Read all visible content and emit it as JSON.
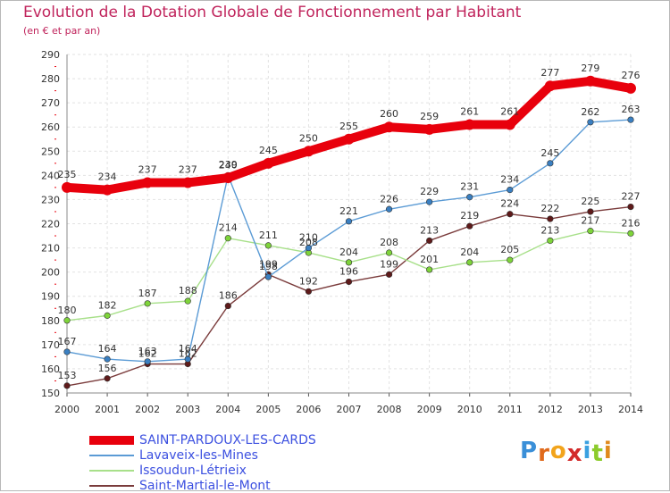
{
  "header": {
    "title": "Evolution de la Dotation Globale de Fonctionnement par Habitant",
    "subtitle": "(en € et par an)"
  },
  "chart_data": {
    "type": "line",
    "title": "Evolution de la Dotation Globale de Fonctionnement par Habitant",
    "ylabel": "(en € et par an)",
    "xlabel": "",
    "x": [
      "2000",
      "2001",
      "2002",
      "2003",
      "2004",
      "2005",
      "2006",
      "2007",
      "2008",
      "2009",
      "2010",
      "2011",
      "2012",
      "2013",
      "2014"
    ],
    "ylim": [
      150,
      290
    ],
    "yticks": [
      "150",
      "160",
      "170",
      "180",
      "190",
      "200",
      "210",
      "220",
      "230",
      "240",
      "250",
      "260",
      "270",
      "280",
      "290"
    ],
    "grid": true,
    "legend_position": "bottom-left",
    "series": [
      {
        "name": "SAINT-PARDOUX-LES-CARDS",
        "color": "#e8000c",
        "marker": "#e8000c",
        "values": [
          235,
          234,
          237,
          237,
          239,
          245,
          250,
          255,
          260,
          259,
          261,
          261,
          277,
          279,
          276
        ]
      },
      {
        "name": "Lavaveix-les-Mines",
        "color": "#5b9bd5",
        "marker": "#3a7fc1",
        "values": [
          167,
          164,
          163,
          164,
          240,
          198,
          210,
          221,
          226,
          229,
          231,
          234,
          245,
          262,
          263
        ]
      },
      {
        "name": "Issoudun-Létrieix",
        "color": "#a8e08a",
        "marker": "#7ed43a",
        "values": [
          180,
          182,
          187,
          188,
          214,
          211,
          208,
          204,
          208,
          201,
          204,
          205,
          213,
          217,
          216
        ]
      },
      {
        "name": "Saint-Martial-le-Mont",
        "color": "#7a3b3b",
        "marker": "#5e1a1a",
        "values": [
          153,
          156,
          162,
          162,
          186,
          199,
          192,
          196,
          199,
          213,
          219,
          224,
          222,
          225,
          227
        ]
      }
    ]
  },
  "brand": {
    "letters": [
      "P",
      "r",
      "o",
      "x",
      "i",
      "t",
      "i"
    ],
    "colors": [
      "#3a8fd8",
      "#e06a1c",
      "#f2a41c",
      "#d32a2a",
      "#3aa0e0",
      "#8ccb2c",
      "#e08a1c"
    ]
  }
}
